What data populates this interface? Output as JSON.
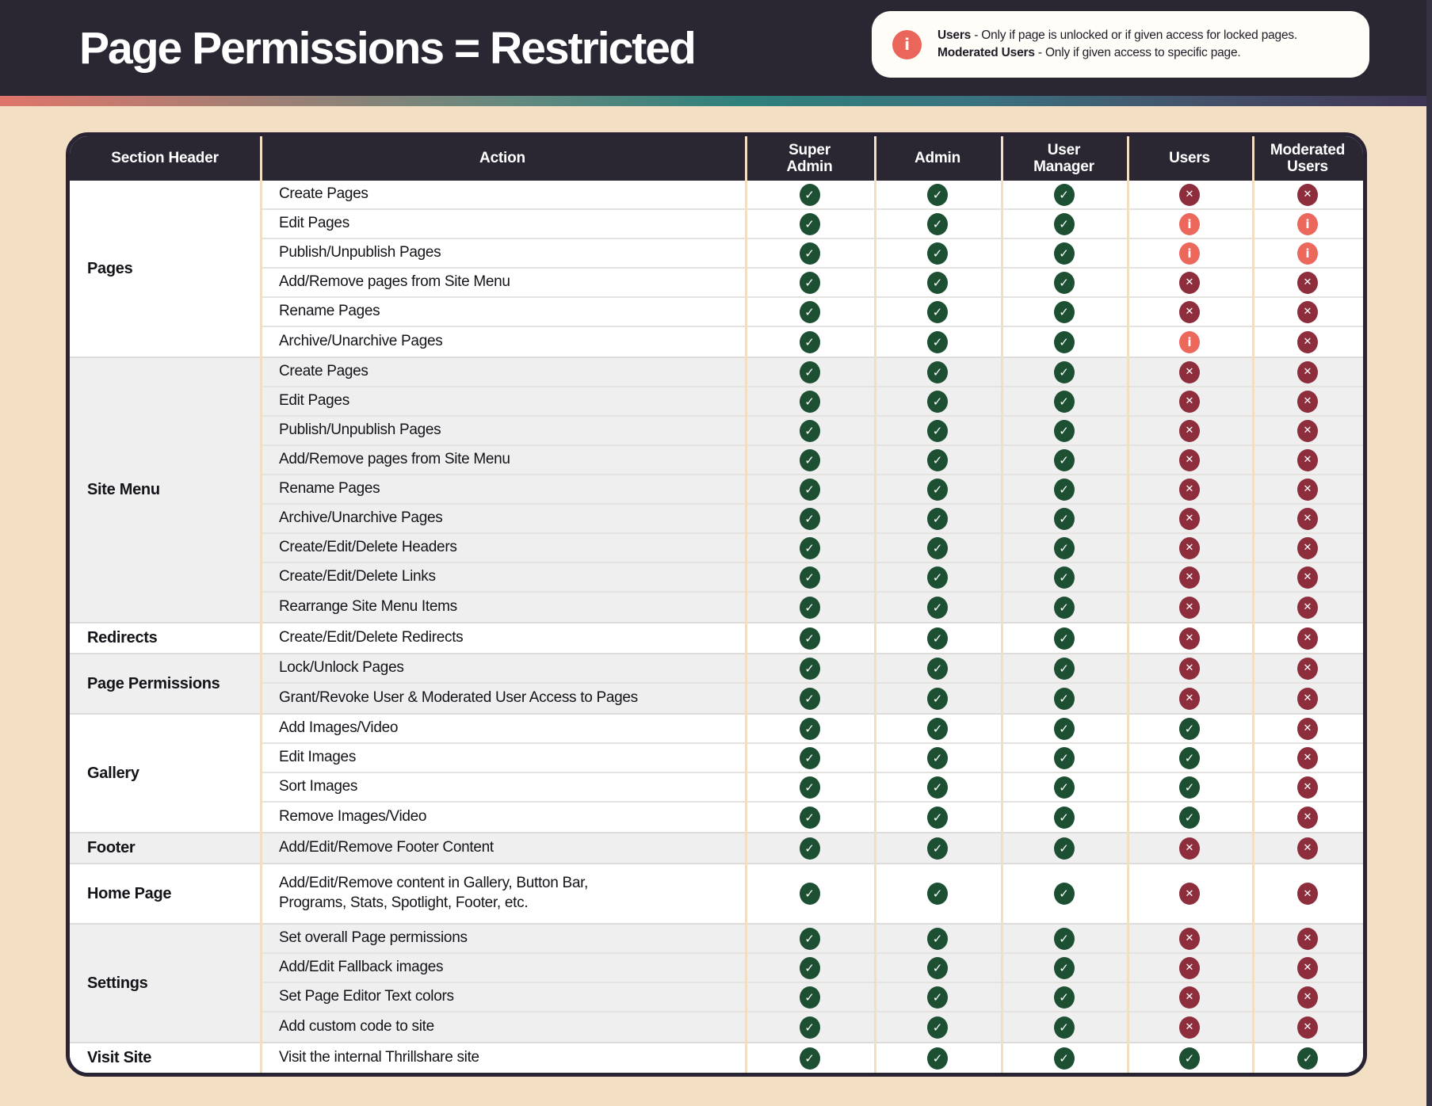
{
  "header": {
    "title": "Page Permissions = Restricted"
  },
  "legend": {
    "info_icon": "i",
    "line1_bold": "Users",
    "line1_rest": " - Only if page is unlocked or if given access for locked pages.",
    "line2_bold": "Moderated Users",
    "line2_rest": " - Only if given access to specific page."
  },
  "colors": {
    "band": "#2a2733",
    "cream_background": "#f3dfc3",
    "check_green": "#1d5033",
    "cross_maroon": "#8e2d3c",
    "info_coral": "#ec675c",
    "gray_section": "#efeff0"
  },
  "icon_glyphs": {
    "check": "✓",
    "cross": "✕",
    "info": "i"
  },
  "table": {
    "columns": [
      "Section Header",
      "Action",
      "Super\nAdmin",
      "Admin",
      "User\nManager",
      "Users",
      "Moderated\nUsers"
    ],
    "sections": [
      {
        "name": "Pages",
        "bg": "white",
        "rows": [
          {
            "action": "Create Pages",
            "states": [
              "check",
              "check",
              "check",
              "cross",
              "cross"
            ]
          },
          {
            "action": "Edit Pages",
            "states": [
              "check",
              "check",
              "check",
              "info",
              "info"
            ]
          },
          {
            "action": "Publish/Unpublish Pages",
            "states": [
              "check",
              "check",
              "check",
              "info",
              "info"
            ]
          },
          {
            "action": "Add/Remove pages from Site Menu",
            "states": [
              "check",
              "check",
              "check",
              "cross",
              "cross"
            ]
          },
          {
            "action": "Rename Pages",
            "states": [
              "check",
              "check",
              "check",
              "cross",
              "cross"
            ]
          },
          {
            "action": "Archive/Unarchive Pages",
            "states": [
              "check",
              "check",
              "check",
              "info",
              "cross"
            ]
          }
        ]
      },
      {
        "name": "Site Menu",
        "bg": "gray",
        "rows": [
          {
            "action": "Create Pages",
            "states": [
              "check",
              "check",
              "check",
              "cross",
              "cross"
            ]
          },
          {
            "action": "Edit Pages",
            "states": [
              "check",
              "check",
              "check",
              "cross",
              "cross"
            ]
          },
          {
            "action": "Publish/Unpublish Pages",
            "states": [
              "check",
              "check",
              "check",
              "cross",
              "cross"
            ]
          },
          {
            "action": "Add/Remove pages from Site Menu",
            "states": [
              "check",
              "check",
              "check",
              "cross",
              "cross"
            ]
          },
          {
            "action": "Rename Pages",
            "states": [
              "check",
              "check",
              "check",
              "cross",
              "cross"
            ]
          },
          {
            "action": "Archive/Unarchive Pages",
            "states": [
              "check",
              "check",
              "check",
              "cross",
              "cross"
            ]
          },
          {
            "action": "Create/Edit/Delete Headers",
            "states": [
              "check",
              "check",
              "check",
              "cross",
              "cross"
            ]
          },
          {
            "action": "Create/Edit/Delete Links",
            "states": [
              "check",
              "check",
              "check",
              "cross",
              "cross"
            ]
          },
          {
            "action": "Rearrange Site Menu Items",
            "states": [
              "check",
              "check",
              "check",
              "cross",
              "cross"
            ]
          }
        ]
      },
      {
        "name": "Redirects",
        "bg": "white",
        "rows": [
          {
            "action": "Create/Edit/Delete Redirects",
            "states": [
              "check",
              "check",
              "check",
              "cross",
              "cross"
            ]
          }
        ]
      },
      {
        "name": "Page Permissions",
        "bg": "gray",
        "rows": [
          {
            "action": "Lock/Unlock Pages",
            "states": [
              "check",
              "check",
              "check",
              "cross",
              "cross"
            ]
          },
          {
            "action": "Grant/Revoke User & Moderated User Access to Pages",
            "states": [
              "check",
              "check",
              "check",
              "cross",
              "cross"
            ]
          }
        ]
      },
      {
        "name": "Gallery",
        "bg": "white",
        "rows": [
          {
            "action": "Add Images/Video",
            "states": [
              "check",
              "check",
              "check",
              "check",
              "cross"
            ]
          },
          {
            "action": "Edit Images",
            "states": [
              "check",
              "check",
              "check",
              "check",
              "cross"
            ]
          },
          {
            "action": "Sort Images",
            "states": [
              "check",
              "check",
              "check",
              "check",
              "cross"
            ]
          },
          {
            "action": "Remove Images/Video",
            "states": [
              "check",
              "check",
              "check",
              "check",
              "cross"
            ]
          }
        ]
      },
      {
        "name": "Footer",
        "bg": "gray",
        "rows": [
          {
            "action": "Add/Edit/Remove Footer Content",
            "states": [
              "check",
              "check",
              "check",
              "cross",
              "cross"
            ]
          }
        ]
      },
      {
        "name": "Home Page",
        "bg": "white",
        "rows": [
          {
            "action": "Add/Edit/Remove content in Gallery, Button Bar,\nPrograms, Stats, Spotlight, Footer, etc.",
            "tall": true,
            "states": [
              "check",
              "check",
              "check",
              "cross",
              "cross"
            ]
          }
        ]
      },
      {
        "name": "Settings",
        "bg": "gray",
        "rows": [
          {
            "action": "Set overall Page permissions",
            "states": [
              "check",
              "check",
              "check",
              "cross",
              "cross"
            ]
          },
          {
            "action": "Add/Edit Fallback images",
            "states": [
              "check",
              "check",
              "check",
              "cross",
              "cross"
            ]
          },
          {
            "action": "Set Page Editor Text colors",
            "states": [
              "check",
              "check",
              "check",
              "cross",
              "cross"
            ]
          },
          {
            "action": "Add custom code to site",
            "states": [
              "check",
              "check",
              "check",
              "cross",
              "cross"
            ]
          }
        ]
      },
      {
        "name": "Visit Site",
        "bg": "white",
        "rows": [
          {
            "action": "Visit the internal Thrillshare site",
            "states": [
              "check",
              "check",
              "check",
              "check",
              "check"
            ]
          }
        ]
      }
    ]
  }
}
